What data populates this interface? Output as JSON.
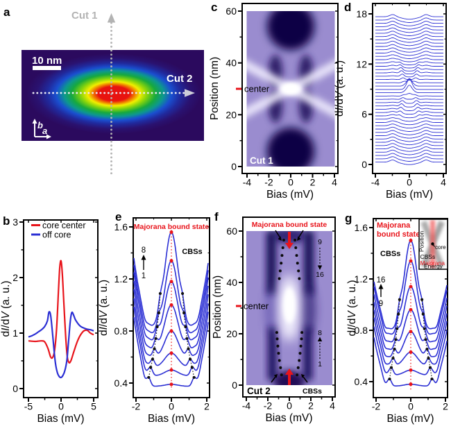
{
  "colors": {
    "curve_blue": "#2b2fd4",
    "accent_red": "#e8141b",
    "map_base": "#9a8ccf",
    "map_dark": "#150a52",
    "gray_cut": "#b3b3b3"
  },
  "panel_labels": {
    "a": "a",
    "b": "b",
    "c": "c",
    "d": "d",
    "e": "e",
    "f": "f",
    "g": "g"
  },
  "chart_data": [
    {
      "panel": "a",
      "type": "heatmap",
      "description": "zero-bias dI/dV map of elongated vortex core",
      "colormap": "red core, yellow-green halo, blue-indigo background",
      "cut1": "Cut 1",
      "cut2": "Cut 2",
      "scale_bar": "10 nm",
      "axis_b": "b",
      "axis_a": "a"
    },
    {
      "panel": "b",
      "type": "line",
      "xlabel": "Bias (mV)",
      "ylabel": "dI/dV (a. u.)",
      "xlim": [
        -5.8,
        5.8
      ],
      "ylim": [
        -0.1,
        3.1
      ],
      "xticks": [
        {
          "v": -5,
          "t": "-5"
        },
        {
          "v": 0,
          "t": "0"
        },
        {
          "v": 5,
          "t": "5"
        }
      ],
      "xminor": [
        -2.5,
        2.5
      ],
      "yticks": [
        {
          "v": 0,
          "t": "0"
        },
        {
          "v": 1,
          "t": "1"
        },
        {
          "v": 2,
          "t": "2"
        },
        {
          "v": 3,
          "t": "3"
        }
      ],
      "yminor": [
        0.5,
        1.5,
        2.5
      ],
      "series": [
        {
          "name": "core center",
          "color": "#e8141b",
          "points": [
            [
              -5,
              0.86
            ],
            [
              -4,
              0.85
            ],
            [
              -3,
              0.86
            ],
            [
              -2.5,
              0.84
            ],
            [
              -2,
              0.72
            ],
            [
              -1.6,
              0.57
            ],
            [
              -1.3,
              0.56
            ],
            [
              -1,
              0.68
            ],
            [
              -0.7,
              1.05
            ],
            [
              -0.4,
              1.75
            ],
            [
              -0.2,
              2.18
            ],
            [
              0,
              2.3
            ],
            [
              0.2,
              2.05
            ],
            [
              0.45,
              1.5
            ],
            [
              0.7,
              0.95
            ],
            [
              0.95,
              0.58
            ],
            [
              1.2,
              0.47
            ],
            [
              1.5,
              0.5
            ],
            [
              2,
              0.68
            ],
            [
              2.5,
              0.85
            ],
            [
              3,
              0.97
            ],
            [
              3.5,
              1.04
            ],
            [
              4,
              1.05
            ],
            [
              4.5,
              1.0
            ],
            [
              5,
              0.97
            ]
          ]
        },
        {
          "name": "off core",
          "color": "#2b2fd4",
          "points": [
            [
              -5,
              0.93
            ],
            [
              -4.5,
              0.95
            ],
            [
              -4,
              0.98
            ],
            [
              -3.5,
              1.02
            ],
            [
              -3,
              1.06
            ],
            [
              -2.5,
              1.12
            ],
            [
              -2.1,
              1.22
            ],
            [
              -1.85,
              1.38
            ],
            [
              -1.6,
              1.32
            ],
            [
              -1.35,
              1.05
            ],
            [
              -1.1,
              0.72
            ],
            [
              -0.85,
              0.45
            ],
            [
              -0.6,
              0.3
            ],
            [
              -0.3,
              0.22
            ],
            [
              0,
              0.2
            ],
            [
              0.3,
              0.24
            ],
            [
              0.6,
              0.33
            ],
            [
              0.9,
              0.52
            ],
            [
              1.15,
              0.85
            ],
            [
              1.4,
              1.2
            ],
            [
              1.65,
              1.37
            ],
            [
              1.9,
              1.33
            ],
            [
              2.2,
              1.24
            ],
            [
              2.6,
              1.17
            ],
            [
              3,
              1.12
            ],
            [
              3.5,
              1.09
            ],
            [
              4,
              1.07
            ],
            [
              4.5,
              1.06
            ],
            [
              5,
              1.04
            ]
          ]
        }
      ]
    },
    {
      "panel": "c",
      "type": "heatmap",
      "xlabel": "Bias (mV)",
      "ylabel": "Position (nm)",
      "xlim": [
        -4,
        4
      ],
      "ylim": [
        0,
        60
      ],
      "xticks": [
        {
          "v": -4,
          "t": "-4"
        },
        {
          "v": -2,
          "t": "-2"
        },
        {
          "v": 0,
          "t": "0"
        },
        {
          "v": 2,
          "t": "2"
        },
        {
          "v": 4,
          "t": "4"
        }
      ],
      "xminor": [
        -3,
        -1,
        1,
        3
      ],
      "yticks": [
        {
          "v": 0,
          "t": "0"
        },
        {
          "v": 20,
          "t": "20"
        },
        {
          "v": 40,
          "t": "40"
        },
        {
          "v": 60,
          "t": "60"
        }
      ],
      "yminor": [
        10,
        30,
        50
      ],
      "inside_label": "Cut 1",
      "center_label": "center",
      "center_nm": 30,
      "description": "linecut spectra map along Cut 1: bright zero-bias core state at 30 nm with X-shaped dispersing CBS branches"
    },
    {
      "panel": "d",
      "type": "waterfall",
      "xlabel": "Bias (mV)",
      "ylabel": "dI/dV (a. u.)",
      "xlim": [
        -4,
        4
      ],
      "ylim": [
        0,
        18
      ],
      "xticks": [
        {
          "v": -4,
          "t": "-4"
        },
        {
          "v": 0,
          "t": "0"
        },
        {
          "v": 4,
          "t": "4"
        }
      ],
      "xminor": [
        -2,
        2
      ],
      "yticks": [
        {
          "v": 0,
          "t": "0"
        },
        {
          "v": 6,
          "t": "6"
        },
        {
          "v": 12,
          "t": "12"
        },
        {
          "v": 18,
          "t": "18"
        }
      ],
      "yminor": [
        3,
        9,
        15
      ],
      "n_curves": 45,
      "base": 0.28,
      "offset_step": 0.395,
      "position_span_nm": 60,
      "zbp_amp": 1.25,
      "zbp_width_nm": 2.4,
      "dip_depth": 0.3,
      "edge_bump": 0.27,
      "edge_bump_bias": 1.95,
      "cbs_amp": 0.34,
      "cbs_center_nm": 7,
      "cbs_width_nm": 5
    },
    {
      "panel": "e",
      "type": "waterfall",
      "xlabel": "Bias (mV)",
      "ylabel": "dI/dV (a. u.)",
      "xlim": [
        -2.16,
        2.16
      ],
      "ylim": [
        0.29,
        1.67
      ],
      "xticks": [
        {
          "v": -2,
          "t": "-2"
        },
        {
          "v": 0,
          "t": "0"
        },
        {
          "v": 2,
          "t": "2"
        }
      ],
      "xminor": [
        -1,
        1
      ],
      "yticks": [
        {
          "v": 0.4,
          "t": "0.4"
        },
        {
          "v": 0.8,
          "t": "0.8"
        },
        {
          "v": 1.2,
          "t": "1.2"
        },
        {
          "v": 1.6,
          "t": "1.6"
        }
      ],
      "yminor": [
        0.6,
        1.0,
        1.4
      ],
      "title": "Majorana bound state",
      "cbs_label": "CBSs",
      "num_top": "8",
      "num_bottom": "1",
      "wing": 0.42,
      "curves": [
        {
          "off": 0.375,
          "zbp": 0.015,
          "cbsX": 1.28,
          "cbsA": 0.045
        },
        {
          "off": 0.455,
          "zbp": 0.045,
          "cbsX": 1.17,
          "cbsA": 0.055
        },
        {
          "off": 0.52,
          "zbp": 0.11,
          "cbsX": 1.06,
          "cbsA": 0.06
        },
        {
          "off": 0.59,
          "zbp": 0.21,
          "cbsX": 0.96,
          "cbsA": 0.065
        },
        {
          "off": 0.655,
          "zbp": 0.345,
          "cbsX": 0.88,
          "cbsA": 0.065
        },
        {
          "off": 0.72,
          "zbp": 0.46,
          "cbsX": 0.8,
          "cbsA": 0.065
        },
        {
          "off": 0.775,
          "zbp": 0.565,
          "cbsX": 0.71,
          "cbsA": 0.07
        },
        {
          "off": 0.83,
          "zbp": 0.73,
          "cbsX": 0.63,
          "cbsA": 0.08
        }
      ]
    },
    {
      "panel": "f",
      "type": "heatmap",
      "xlabel": "Bias (mV)",
      "ylabel": "Position (nm)",
      "xlim": [
        -4,
        4
      ],
      "ylim": [
        0,
        60
      ],
      "xticks": [
        {
          "v": -4,
          "t": "-4"
        },
        {
          "v": -2,
          "t": "-2"
        },
        {
          "v": 0,
          "t": "0"
        },
        {
          "v": 2,
          "t": "2"
        },
        {
          "v": 4,
          "t": "4"
        }
      ],
      "xminor": [
        -3,
        -1,
        1,
        3
      ],
      "yticks": [
        {
          "v": 0,
          "t": "0"
        },
        {
          "v": 20,
          "t": "20"
        },
        {
          "v": 40,
          "t": "40"
        },
        {
          "v": 60,
          "t": "60"
        }
      ],
      "yminor": [
        10,
        30,
        50
      ],
      "title": "Majorana bound state",
      "center_label": "center",
      "center_nm": 30,
      "inside_label": "Cut 2",
      "cbs_label": "CBSs",
      "numbers": {
        "upper_from": "9",
        "upper_to": "16",
        "lower_to": "8",
        "lower_from": "1"
      },
      "cbs_dots": {
        "top_left": [
          [
            -0.52,
            56.5
          ],
          [
            -0.6,
            53.5
          ],
          [
            -0.68,
            50.5
          ],
          [
            -0.76,
            47.5
          ],
          [
            -0.85,
            44.5
          ],
          [
            -0.93,
            41.5
          ]
        ],
        "top_right": [
          [
            0.52,
            56.5
          ],
          [
            0.6,
            53.5
          ],
          [
            0.68,
            50.5
          ],
          [
            0.76,
            47.5
          ],
          [
            0.85,
            44.5
          ],
          [
            0.93,
            41.5
          ]
        ],
        "bottom_left": [
          [
            -0.72,
            4
          ],
          [
            -0.82,
            6.8
          ],
          [
            -0.92,
            9.6
          ],
          [
            -1.0,
            12.4
          ],
          [
            -1.07,
            15.2
          ],
          [
            -1.13,
            18
          ],
          [
            -1.17,
            20.5
          ]
        ],
        "bottom_right": [
          [
            0.72,
            4
          ],
          [
            0.82,
            6.8
          ],
          [
            0.92,
            9.6
          ],
          [
            1.0,
            12.4
          ],
          [
            1.07,
            15.2
          ],
          [
            1.13,
            18
          ],
          [
            1.17,
            20.5
          ]
        ]
      },
      "description": "linecut spectra map along Cut 2: elongated bright zero-bias Majorana state around core center, dotted CBS branches"
    },
    {
      "panel": "g",
      "type": "waterfall",
      "xlabel": "Bias (mV)",
      "ylabel": "dI/dV (a. u.)",
      "xlim": [
        -2.16,
        2.16
      ],
      "ylim": [
        0.29,
        1.67
      ],
      "xticks": [
        {
          "v": -2,
          "t": "-2"
        },
        {
          "v": 0,
          "t": "0"
        },
        {
          "v": 2,
          "t": "2"
        }
      ],
      "xminor": [
        -1,
        1
      ],
      "yticks": [
        {
          "v": 0.4,
          "t": "0.4"
        },
        {
          "v": 0.8,
          "t": "0.8"
        },
        {
          "v": 1.2,
          "t": "1.2"
        },
        {
          "v": 1.6,
          "t": "1.6"
        }
      ],
      "yminor": [
        0.6,
        1.0,
        1.4
      ],
      "title_line1": "Majorana",
      "title_line2": "bound state",
      "cbs_label": "CBSs",
      "num_top": "16",
      "num_bottom": "9",
      "wing": 0.3,
      "curves": [
        {
          "off": 0.365,
          "zbp": 0.015,
          "cbsX": 1.22,
          "cbsA": 0.045
        },
        {
          "off": 0.45,
          "zbp": 0.04,
          "cbsX": 1.12,
          "cbsA": 0.055
        },
        {
          "off": 0.52,
          "zbp": 0.11,
          "cbsX": 1.02,
          "cbsA": 0.06
        },
        {
          "off": 0.58,
          "zbp": 0.21,
          "cbsX": 0.94,
          "cbsA": 0.065
        },
        {
          "off": 0.64,
          "zbp": 0.32,
          "cbsX": 0.86,
          "cbsA": 0.065
        },
        {
          "off": 0.7,
          "zbp": 0.44,
          "cbsX": 0.79,
          "cbsA": 0.065
        },
        {
          "off": 0.76,
          "zbp": 0.58,
          "cbsX": 0.71,
          "cbsA": 0.07
        },
        {
          "off": 0.8,
          "zbp": 0.7,
          "cbsX": 0.645,
          "cbsA": 0.08
        }
      ],
      "inset": {
        "position": "Position",
        "energy": "Energy",
        "cbs": "CBSs",
        "majorana": "Majorana",
        "core": "core"
      }
    }
  ]
}
